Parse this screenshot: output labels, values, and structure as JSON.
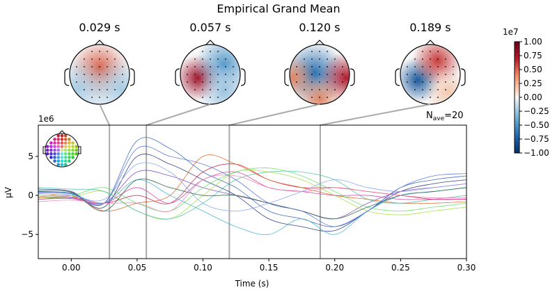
{
  "title": "Empirical Grand Mean",
  "topomaps": [
    {
      "label": "0.029 s",
      "time": 0.029,
      "blobs": [
        {
          "dx": 0,
          "dy": -8,
          "r": 28,
          "color": "#d8604a"
        },
        {
          "dx": -30,
          "dy": 20,
          "r": 30,
          "color": "#a8cce4"
        },
        {
          "dx": 30,
          "dy": 20,
          "r": 30,
          "color": "#a8cce4"
        }
      ]
    },
    {
      "label": "0.057 s",
      "time": 0.057,
      "blobs": [
        {
          "dx": -18,
          "dy": 5,
          "r": 22,
          "color": "#a01830"
        },
        {
          "dx": 20,
          "dy": -15,
          "r": 28,
          "color": "#5a9ccc"
        },
        {
          "dx": 20,
          "dy": 25,
          "r": 25,
          "color": "#9cc4e0"
        }
      ]
    },
    {
      "label": "0.120 s",
      "time": 0.12,
      "blobs": [
        {
          "dx": -8,
          "dy": -2,
          "r": 30,
          "color": "#2a70b0"
        },
        {
          "dx": 38,
          "dy": 5,
          "r": 25,
          "color": "#b01c30"
        },
        {
          "dx": -38,
          "dy": 5,
          "r": 22,
          "color": "#e08868"
        },
        {
          "dx": 0,
          "dy": 35,
          "r": 22,
          "color": "#e08868"
        }
      ]
    },
    {
      "label": "0.189 s",
      "time": 0.189,
      "blobs": [
        {
          "dx": -18,
          "dy": 8,
          "r": 22,
          "color": "#1c5a9c"
        },
        {
          "dx": 10,
          "dy": -20,
          "r": 24,
          "color": "#c83c3c"
        },
        {
          "dx": 25,
          "dy": 25,
          "r": 22,
          "color": "#f2c8b0"
        }
      ]
    }
  ],
  "colorbar": {
    "exponent": "1e7",
    "ticks": [
      "1.00",
      "0.75",
      "0.50",
      "0.25",
      "0.00",
      "−0.25",
      "−0.50",
      "−0.75",
      "−1.00"
    ],
    "colormap": "RdBu_r"
  },
  "nave": {
    "label": "N",
    "sub": "ave",
    "value": "=20"
  },
  "chart_data": {
    "type": "line",
    "xlabel": "Time (s)",
    "ylabel": "µV",
    "y_exponent": "1e6",
    "xlim": [
      -0.025,
      0.3
    ],
    "ylim": [
      -8.1,
      9.0
    ],
    "xticks": [
      "0.00",
      "0.05",
      "0.10",
      "0.15",
      "0.20",
      "0.25",
      "0.30"
    ],
    "yticks": [
      "−5",
      "0",
      "5"
    ],
    "grid": false,
    "legend": "sensor-position head inset top-left",
    "x": [
      -0.025,
      0,
      0.025,
      0.05,
      0.075,
      0.1,
      0.125,
      0.15,
      0.175,
      0.2,
      0.225,
      0.25,
      0.275,
      0.3
    ],
    "series": [
      {
        "color": "#3060c0",
        "values": [
          0.5,
          0.3,
          -1,
          7,
          6,
          3,
          1,
          -2,
          -3,
          -4,
          -2,
          1,
          2,
          2.5
        ]
      },
      {
        "color": "#203080",
        "values": [
          0.8,
          0.5,
          -1.5,
          5,
          4,
          2,
          0,
          -3,
          -4,
          -4.5,
          -2,
          0.5,
          1.5,
          2
        ]
      },
      {
        "color": "#8040c0",
        "values": [
          -0.5,
          -0.3,
          -1,
          3,
          2.5,
          1,
          0,
          -1,
          -2,
          -3,
          -1,
          0.5,
          1,
          1.5
        ]
      },
      {
        "color": "#d02040",
        "values": [
          -0.3,
          -0.2,
          -1,
          0,
          -1,
          3,
          4,
          2,
          1,
          1,
          0.5,
          0,
          -0.5,
          -0.5
        ]
      },
      {
        "color": "#e06020",
        "values": [
          -0.2,
          0,
          -2,
          -1,
          0,
          5,
          4,
          2,
          1,
          0,
          -0.5,
          -1,
          -1,
          -0.8
        ]
      },
      {
        "color": "#a0e040",
        "values": [
          -0.3,
          -0.2,
          0.5,
          -2,
          -3,
          0,
          3,
          3,
          2,
          0,
          -2,
          -2.5,
          -2,
          -1.5
        ]
      },
      {
        "color": "#60e060",
        "values": [
          0,
          0,
          1,
          -1,
          -2,
          1,
          3,
          3.5,
          2.5,
          0.5,
          -1.5,
          -2,
          -1.5,
          -1
        ]
      },
      {
        "color": "#40c0a0",
        "values": [
          1,
          0.8,
          0.5,
          -2,
          -3,
          -1,
          2,
          3,
          3,
          2,
          -0.5,
          -1,
          -0.5,
          0
        ]
      },
      {
        "color": "#d040a0",
        "values": [
          -0.5,
          -0.4,
          -1,
          1,
          -1,
          2,
          3,
          1,
          0.5,
          0,
          0,
          -0.5,
          -0.5,
          -0.5
        ]
      },
      {
        "color": "#80a0f0",
        "values": [
          0.2,
          0,
          -0.5,
          4,
          3,
          -1,
          -2,
          -1,
          0.5,
          2,
          1,
          0.5,
          1,
          1.5
        ]
      },
      {
        "color": "#40b0d0",
        "values": [
          0.3,
          0.2,
          -1,
          2,
          0,
          -2,
          -4,
          -5,
          -3,
          -5,
          -2,
          0,
          0.5,
          1
        ]
      },
      {
        "color": "#206040",
        "values": [
          0.6,
          0.4,
          -2,
          2,
          1,
          0,
          0,
          -1,
          -2,
          -3,
          -1.5,
          0,
          0.5,
          1
        ]
      },
      {
        "color": "#f080b0",
        "values": [
          -0.8,
          -0.6,
          -1,
          -1,
          -2,
          2,
          2.5,
          1,
          0.5,
          1,
          0.5,
          0,
          -0.3,
          -0.3
        ]
      },
      {
        "color": "#5070e0",
        "values": [
          0.4,
          0.2,
          -1,
          6,
          5,
          4,
          2,
          -1,
          -2,
          -4,
          -2,
          1,
          2.5,
          2.8
        ]
      }
    ]
  }
}
